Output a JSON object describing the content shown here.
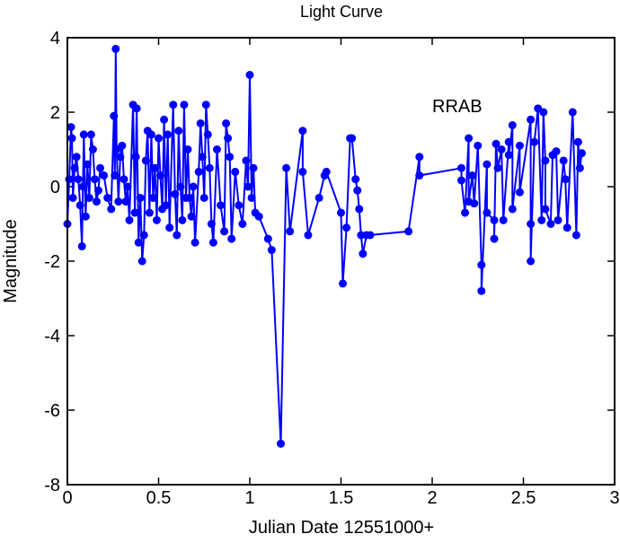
{
  "chart_data": {
    "type": "line",
    "title": "Light Curve",
    "xlabel": "Julian Date 12551000+",
    "ylabel": "Magnitude",
    "xlim": [
      0,
      3
    ],
    "ylim": [
      -8,
      4
    ],
    "xticks": [
      "0",
      "0.5",
      "1",
      "1.5",
      "2",
      "2.5",
      "3"
    ],
    "xtick_values": [
      0,
      0.5,
      1,
      1.5,
      2,
      2.5,
      3
    ],
    "yticks": [
      "4",
      "2",
      "0",
      "-2",
      "-4",
      "-6",
      "-8"
    ],
    "ytick_values": [
      4,
      2,
      0,
      -2,
      -4,
      -6,
      -8
    ],
    "grid": false,
    "annotation": {
      "text": "RRAB",
      "x": 2.0,
      "y": 2.0
    },
    "color": "#0000ff",
    "series": [
      {
        "name": "RRAB",
        "marker": "circle",
        "x": [
          0.0,
          0.01,
          0.02,
          0.025,
          0.03,
          0.04,
          0.05,
          0.06,
          0.07,
          0.08,
          0.085,
          0.09,
          0.1,
          0.11,
          0.12,
          0.13,
          0.14,
          0.15,
          0.16,
          0.17,
          0.18,
          0.2,
          0.22,
          0.24,
          0.255,
          0.26,
          0.265,
          0.27,
          0.28,
          0.29,
          0.3,
          0.31,
          0.32,
          0.33,
          0.34,
          0.36,
          0.37,
          0.375,
          0.38,
          0.39,
          0.4,
          0.41,
          0.42,
          0.43,
          0.44,
          0.45,
          0.46,
          0.47,
          0.48,
          0.49,
          0.5,
          0.51,
          0.52,
          0.53,
          0.54,
          0.55,
          0.56,
          0.58,
          0.59,
          0.6,
          0.61,
          0.62,
          0.63,
          0.64,
          0.65,
          0.66,
          0.67,
          0.68,
          0.69,
          0.7,
          0.72,
          0.73,
          0.74,
          0.75,
          0.76,
          0.77,
          0.78,
          0.79,
          0.8,
          0.82,
          0.84,
          0.86,
          0.87,
          0.88,
          0.89,
          0.9,
          0.92,
          0.94,
          0.96,
          0.98,
          0.99,
          1.0,
          1.01,
          1.02,
          1.03,
          1.05,
          1.1,
          1.12,
          1.17,
          1.2,
          1.22,
          1.29,
          1.29,
          1.32,
          1.38,
          1.41,
          1.42,
          1.5,
          1.51,
          1.53,
          1.55,
          1.56,
          1.58,
          1.59,
          1.6,
          1.61,
          1.62,
          1.64,
          1.66,
          1.87,
          1.93,
          1.93,
          2.16,
          2.16,
          2.18,
          2.2,
          2.2,
          2.22,
          2.23,
          2.25,
          2.27,
          2.27,
          2.3,
          2.3,
          2.34,
          2.34,
          2.35,
          2.36,
          2.38,
          2.39,
          2.42,
          2.42,
          2.44,
          2.44,
          2.48,
          2.48,
          2.54,
          2.54,
          2.54,
          2.56,
          2.58,
          2.6,
          2.61,
          2.62,
          2.62,
          2.65,
          2.66,
          2.68,
          2.69,
          2.72,
          2.73,
          2.74,
          2.77,
          2.79,
          2.8,
          2.81,
          2.82
        ],
        "y": [
          -1.0,
          0.2,
          1.6,
          1.3,
          -0.3,
          0.5,
          0.8,
          0.2,
          -0.5,
          -1.6,
          0.0,
          1.4,
          -0.8,
          0.6,
          -0.3,
          1.4,
          1.0,
          0.2,
          -0.4,
          -0.1,
          0.5,
          0.3,
          -0.3,
          -0.6,
          1.9,
          0.3,
          3.7,
          1.0,
          -0.4,
          0.8,
          1.1,
          0.2,
          -0.4,
          0.0,
          -0.9,
          2.2,
          -0.7,
          0.8,
          2.1,
          -1.5,
          -0.3,
          -2.0,
          -1.3,
          0.7,
          1.5,
          -0.7,
          1.4,
          -0.3,
          0.5,
          -0.9,
          1.3,
          0.3,
          -0.6,
          1.8,
          -0.5,
          1.4,
          -1.1,
          2.2,
          -0.2,
          -1.3,
          1.5,
          0.0,
          -0.9,
          2.2,
          -0.3,
          1.0,
          -0.3,
          -0.8,
          0.0,
          -1.5,
          0.4,
          1.7,
          0.8,
          -0.3,
          2.2,
          1.4,
          0.5,
          -1.0,
          -1.5,
          1.0,
          -0.5,
          -1.2,
          1.7,
          1.3,
          0.8,
          -1.4,
          0.4,
          -0.5,
          -1.0,
          0.7,
          0.0,
          3.0,
          -0.3,
          0.5,
          -0.7,
          -0.8,
          -1.4,
          -1.7,
          -6.9,
          0.5,
          -1.2,
          1.5,
          0.4,
          -1.3,
          -0.3,
          0.3,
          0.4,
          -0.7,
          -2.6,
          -1.1,
          1.3,
          1.3,
          0.2,
          -0.1,
          -0.6,
          -1.3,
          -1.8,
          -1.3,
          -1.3,
          -1.2,
          0.8,
          0.3,
          0.5,
          0.17,
          -0.7,
          1.3,
          -0.4,
          0.3,
          -0.45,
          1.1,
          -2.1,
          -2.8,
          0.6,
          -0.7,
          -0.9,
          -1.4,
          1.15,
          0.5,
          1.0,
          -0.9,
          1.2,
          0.85,
          1.65,
          -0.6,
          1.1,
          -0.15,
          1.8,
          -1.0,
          -2.0,
          1.2,
          2.1,
          -0.9,
          2.0,
          0.7,
          -0.6,
          -1.0,
          0.85,
          0.95,
          -0.9,
          0.7,
          0.2,
          -1.1,
          2.0,
          -1.3,
          1.2,
          0.5,
          0.9
        ]
      }
    ]
  }
}
